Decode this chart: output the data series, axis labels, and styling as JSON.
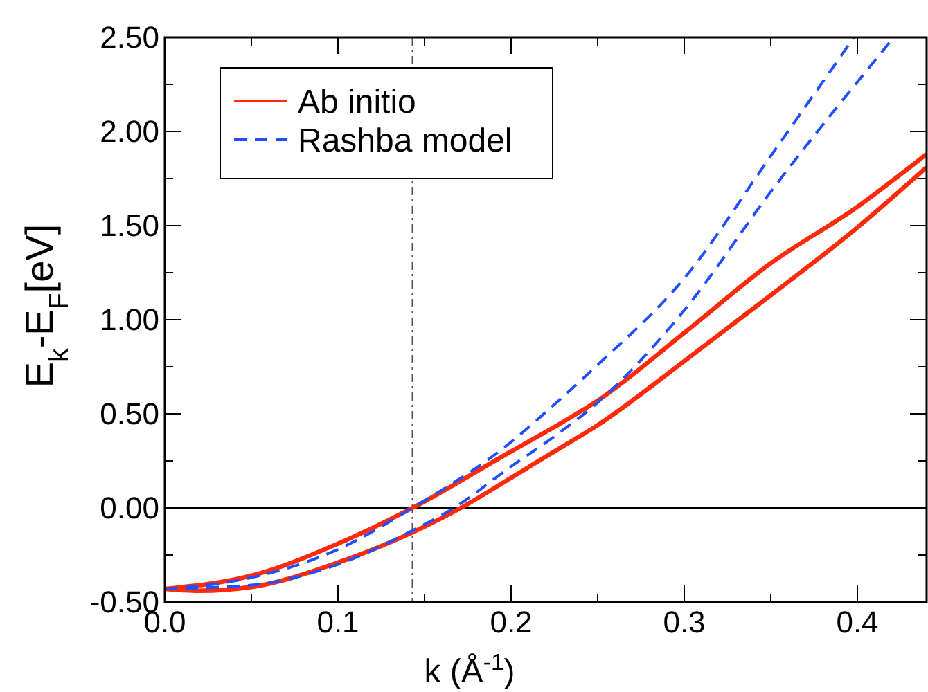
{
  "chart_data": {
    "type": "line",
    "xlabel": "k (Å$^{-1}$)",
    "ylabel": "E$_{k}$-E$_{F}$[eV]",
    "xlim": [
      0,
      0.44
    ],
    "ylim": [
      -0.5,
      2.5
    ],
    "xticks": [
      {
        "value": 0,
        "label": "0.0"
      },
      {
        "value": 0.05,
        "label": null
      },
      {
        "value": 0.1,
        "label": "0.1"
      },
      {
        "value": 0.15,
        "label": null
      },
      {
        "value": 0.2,
        "label": "0.2"
      },
      {
        "value": 0.25,
        "label": null
      },
      {
        "value": 0.3,
        "label": "0.3"
      },
      {
        "value": 0.35,
        "label": null
      },
      {
        "value": 0.4,
        "label": "0.4"
      }
    ],
    "yticks": [
      {
        "value": -0.5,
        "label": "-0.50"
      },
      {
        "value": -0.25,
        "label": null
      },
      {
        "value": 0,
        "label": "0.00"
      },
      {
        "value": 0.25,
        "label": null
      },
      {
        "value": 0.5,
        "label": "0.50"
      },
      {
        "value": 0.75,
        "label": null
      },
      {
        "value": 1,
        "label": "1.00"
      },
      {
        "value": 1.25,
        "label": null
      },
      {
        "value": 1.5,
        "label": "1.50"
      },
      {
        "value": 1.75,
        "label": null
      },
      {
        "value": 2,
        "label": "2.00"
      },
      {
        "value": 2.25,
        "label": null
      },
      {
        "value": 2.5,
        "label": "2.50"
      }
    ],
    "grid": false,
    "legend": "top left",
    "marker": "none",
    "ref_lines": [
      {
        "axis": "y",
        "value": 0,
        "color": "#000000",
        "line_style": "solid"
      },
      {
        "axis": "x",
        "value": 0.143,
        "color": "#555555",
        "line_style": "dashdot"
      }
    ],
    "series": [
      {
        "name": "Ab initio",
        "color": "#ff2a0a",
        "line_style": "solid",
        "x": [
          0,
          0.05,
          0.1,
          0.143,
          0.2,
          0.225,
          0.25,
          0.3,
          0.35,
          0.4,
          0.44
        ],
        "values": [
          -0.43,
          -0.36,
          -0.19,
          0,
          0.3,
          0.43,
          0.57,
          0.93,
          1.3,
          1.6,
          1.88
        ]
      },
      {
        "name": "Rashba model",
        "color": "#1f4fff",
        "line_style": "dashed",
        "x": [
          0,
          0.05,
          0.1,
          0.143,
          0.2,
          0.225,
          0.25,
          0.3,
          0.35,
          0.398
        ],
        "values": [
          -0.43,
          -0.37,
          -0.22,
          0,
          0.35,
          0.55,
          0.76,
          1.22,
          1.87,
          2.5
        ]
      },
      {
        "color": "#ff2a0a",
        "line_style": "solid",
        "x": [
          0,
          0.02,
          0.05,
          0.1,
          0.143,
          0.171,
          0.2,
          0.225,
          0.25,
          0.3,
          0.35,
          0.4,
          0.44
        ],
        "values": [
          -0.43,
          -0.44,
          -0.42,
          -0.29,
          -0.13,
          0,
          0.16,
          0.3,
          0.44,
          0.78,
          1.13,
          1.49,
          1.81
        ]
      },
      {
        "color": "#1f4fff",
        "line_style": "dashed",
        "x": [
          0,
          0.05,
          0.1,
          0.143,
          0.167,
          0.2,
          0.225,
          0.25,
          0.3,
          0.35,
          0.421
        ],
        "values": [
          -0.43,
          -0.41,
          -0.3,
          -0.12,
          0,
          0.22,
          0.38,
          0.56,
          1.05,
          1.68,
          2.5
        ]
      }
    ]
  }
}
